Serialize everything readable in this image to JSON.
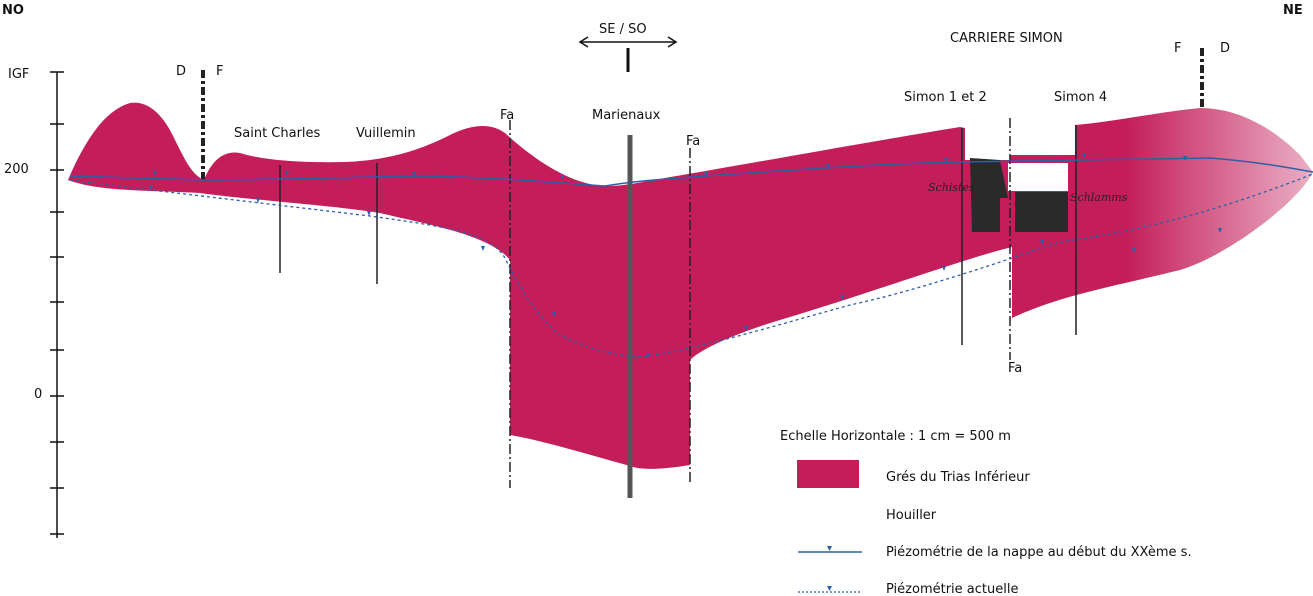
{
  "orientation": {
    "left": "NO",
    "right": "NE"
  },
  "direction_marker": "SE / SO",
  "quarry_title": "CARRIERE SIMON",
  "axis": {
    "title": "IGF",
    "tick_200": "200",
    "tick_0": "0"
  },
  "faults_left": {
    "d": "D",
    "f": "F"
  },
  "faults_right": {
    "f": "F",
    "d": "D"
  },
  "fa_labels": [
    "Fa",
    "Fa",
    "Fa"
  ],
  "wells": {
    "saint_charles": "Saint Charles",
    "vuillemin": "Vuillemin",
    "marienaux": "Marienaux",
    "simon12": "Simon 1 et 2",
    "simon4": "Simon 4"
  },
  "inset_labels": {
    "schistes": "Schistes",
    "schlamms": "Schlamms"
  },
  "legend": {
    "scale": "Echelle Horizontale : 1 cm = 500 m",
    "gres": "Grés du Trias Inférieur",
    "houiller": "Houiller",
    "piezo_old": "Piézométrie de la nappe au début du XXème s.",
    "piezo_now": "Piézométrie actuelle"
  },
  "colors": {
    "sandstone": "#c41e5a",
    "sandstone_dark": "#a8184e",
    "piezo_line": "#2d5fa8",
    "dark_fill": "#2a2a2a"
  }
}
